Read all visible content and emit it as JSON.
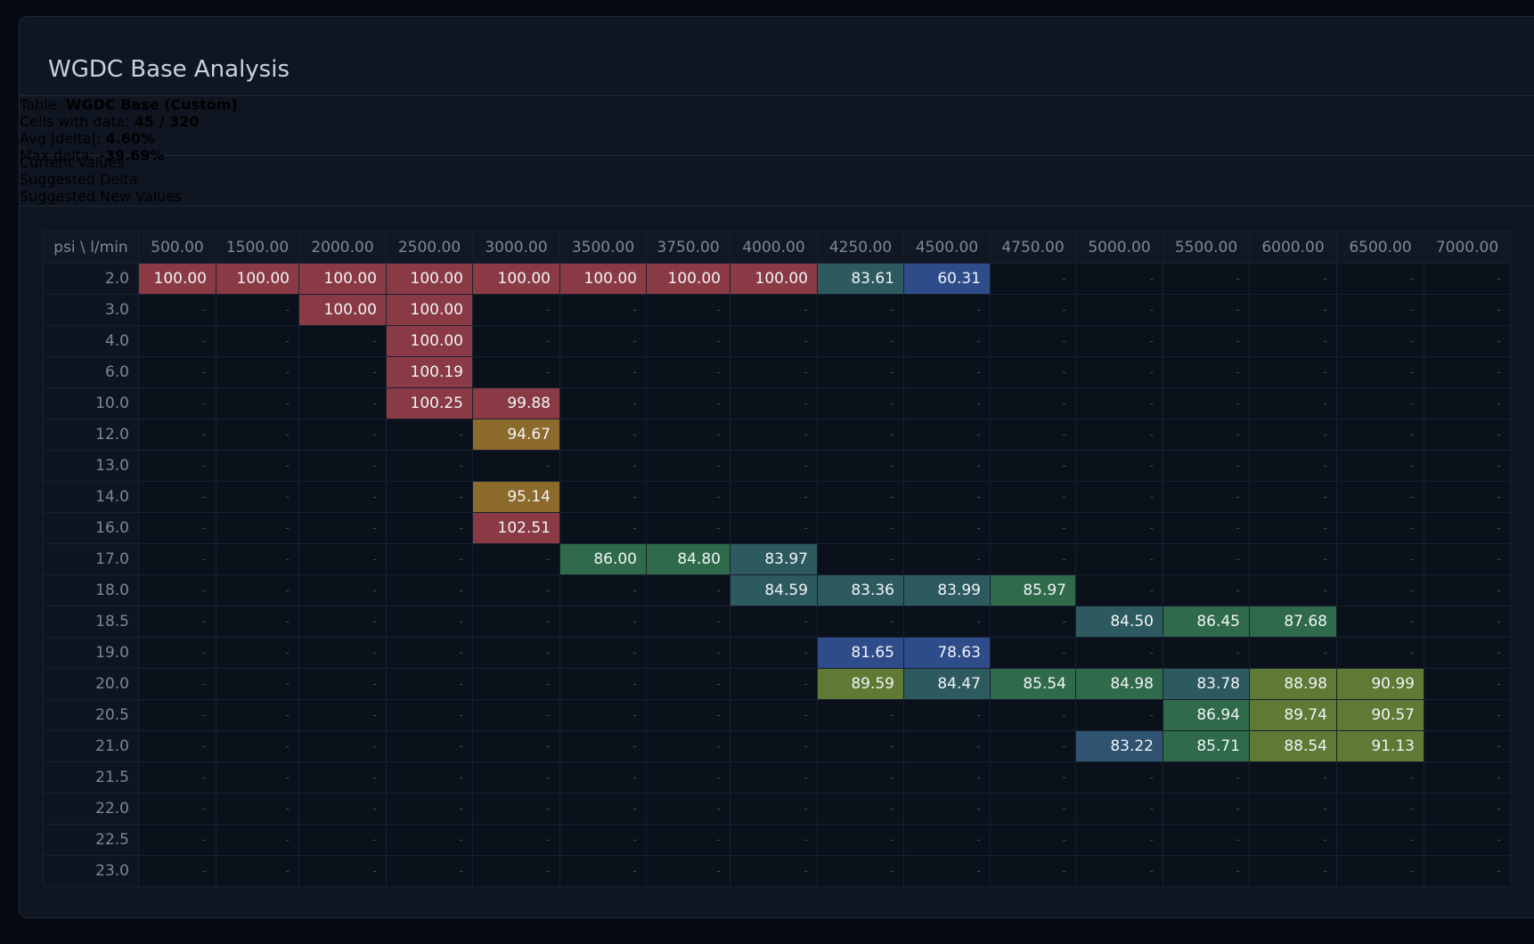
{
  "header": {
    "title": "WGDC Base Analysis"
  },
  "stats": [
    {
      "label": "Table:",
      "value": "WGDC Base (Custom)"
    },
    {
      "label": "Cells with data:",
      "value": "45 / 320"
    },
    {
      "label": "Avg |delta|:",
      "value": "4.60%"
    },
    {
      "label": "Max delta:",
      "value": "-39.69%"
    }
  ],
  "tabs": [
    "Current Values",
    "Suggested Delta",
    "Suggested New Values"
  ],
  "active_tab": 2,
  "table": {
    "corner": "psi \\ l/min",
    "columns": [
      "500.00",
      "1500.00",
      "2000.00",
      "2500.00",
      "3000.00",
      "3500.00",
      "3750.00",
      "4000.00",
      "4250.00",
      "4500.00",
      "4750.00",
      "5000.00",
      "5500.00",
      "6000.00",
      "6500.00",
      "7000.00"
    ],
    "rows": [
      {
        "label": "2.0",
        "cells": [
          "100.00",
          "100.00",
          "100.00",
          "100.00",
          "100.00",
          "100.00",
          "100.00",
          "100.00",
          "83.61",
          "60.31",
          "-",
          "-",
          "-",
          "-",
          "-",
          "-"
        ]
      },
      {
        "label": "3.0",
        "cells": [
          "-",
          "-",
          "100.00",
          "100.00",
          "-",
          "-",
          "-",
          "-",
          "-",
          "-",
          "-",
          "-",
          "-",
          "-",
          "-",
          "-"
        ]
      },
      {
        "label": "4.0",
        "cells": [
          "-",
          "-",
          "-",
          "100.00",
          "-",
          "-",
          "-",
          "-",
          "-",
          "-",
          "-",
          "-",
          "-",
          "-",
          "-",
          "-"
        ]
      },
      {
        "label": "6.0",
        "cells": [
          "-",
          "-",
          "-",
          "100.19",
          "-",
          "-",
          "-",
          "-",
          "-",
          "-",
          "-",
          "-",
          "-",
          "-",
          "-",
          "-"
        ]
      },
      {
        "label": "10.0",
        "cells": [
          "-",
          "-",
          "-",
          "100.25",
          "99.88",
          "-",
          "-",
          "-",
          "-",
          "-",
          "-",
          "-",
          "-",
          "-",
          "-",
          "-"
        ]
      },
      {
        "label": "12.0",
        "cells": [
          "-",
          "-",
          "-",
          "-",
          "94.67",
          "-",
          "-",
          "-",
          "-",
          "-",
          "-",
          "-",
          "-",
          "-",
          "-",
          "-"
        ]
      },
      {
        "label": "13.0",
        "cells": [
          "-",
          "-",
          "-",
          "-",
          "-",
          "-",
          "-",
          "-",
          "-",
          "-",
          "-",
          "-",
          "-",
          "-",
          "-",
          "-"
        ]
      },
      {
        "label": "14.0",
        "cells": [
          "-",
          "-",
          "-",
          "-",
          "95.14",
          "-",
          "-",
          "-",
          "-",
          "-",
          "-",
          "-",
          "-",
          "-",
          "-",
          "-"
        ]
      },
      {
        "label": "16.0",
        "cells": [
          "-",
          "-",
          "-",
          "-",
          "102.51",
          "-",
          "-",
          "-",
          "-",
          "-",
          "-",
          "-",
          "-",
          "-",
          "-",
          "-"
        ]
      },
      {
        "label": "17.0",
        "cells": [
          "-",
          "-",
          "-",
          "-",
          "-",
          "86.00",
          "84.80",
          "83.97",
          "-",
          "-",
          "-",
          "-",
          "-",
          "-",
          "-",
          "-"
        ]
      },
      {
        "label": "18.0",
        "cells": [
          "-",
          "-",
          "-",
          "-",
          "-",
          "-",
          "-",
          "84.59",
          "83.36",
          "83.99",
          "85.97",
          "-",
          "-",
          "-",
          "-",
          "-"
        ]
      },
      {
        "label": "18.5",
        "cells": [
          "-",
          "-",
          "-",
          "-",
          "-",
          "-",
          "-",
          "-",
          "-",
          "-",
          "-",
          "84.50",
          "86.45",
          "87.68",
          "-",
          "-"
        ]
      },
      {
        "label": "19.0",
        "cells": [
          "-",
          "-",
          "-",
          "-",
          "-",
          "-",
          "-",
          "-",
          "81.65",
          "78.63",
          "-",
          "-",
          "-",
          "-",
          "-",
          "-"
        ]
      },
      {
        "label": "20.0",
        "cells": [
          "-",
          "-",
          "-",
          "-",
          "-",
          "-",
          "-",
          "-",
          "89.59",
          "84.47",
          "85.54",
          "84.98",
          "83.78",
          "88.98",
          "90.99",
          "-"
        ]
      },
      {
        "label": "20.5",
        "cells": [
          "-",
          "-",
          "-",
          "-",
          "-",
          "-",
          "-",
          "-",
          "-",
          "-",
          "-",
          "-",
          "86.94",
          "89.74",
          "90.57",
          "-"
        ]
      },
      {
        "label": "21.0",
        "cells": [
          "-",
          "-",
          "-",
          "-",
          "-",
          "-",
          "-",
          "-",
          "-",
          "-",
          "-",
          "83.22",
          "85.71",
          "88.54",
          "91.13",
          "-"
        ]
      },
      {
        "label": "21.5",
        "cells": [
          "-",
          "-",
          "-",
          "-",
          "-",
          "-",
          "-",
          "-",
          "-",
          "-",
          "-",
          "-",
          "-",
          "-",
          "-",
          "-"
        ]
      },
      {
        "label": "22.0",
        "cells": [
          "-",
          "-",
          "-",
          "-",
          "-",
          "-",
          "-",
          "-",
          "-",
          "-",
          "-",
          "-",
          "-",
          "-",
          "-",
          "-"
        ]
      },
      {
        "label": "22.5",
        "cells": [
          "-",
          "-",
          "-",
          "-",
          "-",
          "-",
          "-",
          "-",
          "-",
          "-",
          "-",
          "-",
          "-",
          "-",
          "-",
          "-"
        ]
      },
      {
        "label": "23.0",
        "cells": [
          "-",
          "-",
          "-",
          "-",
          "-",
          "-",
          "-",
          "-",
          "-",
          "-",
          "-",
          "-",
          "-",
          "-",
          "-",
          "-"
        ]
      }
    ]
  }
}
